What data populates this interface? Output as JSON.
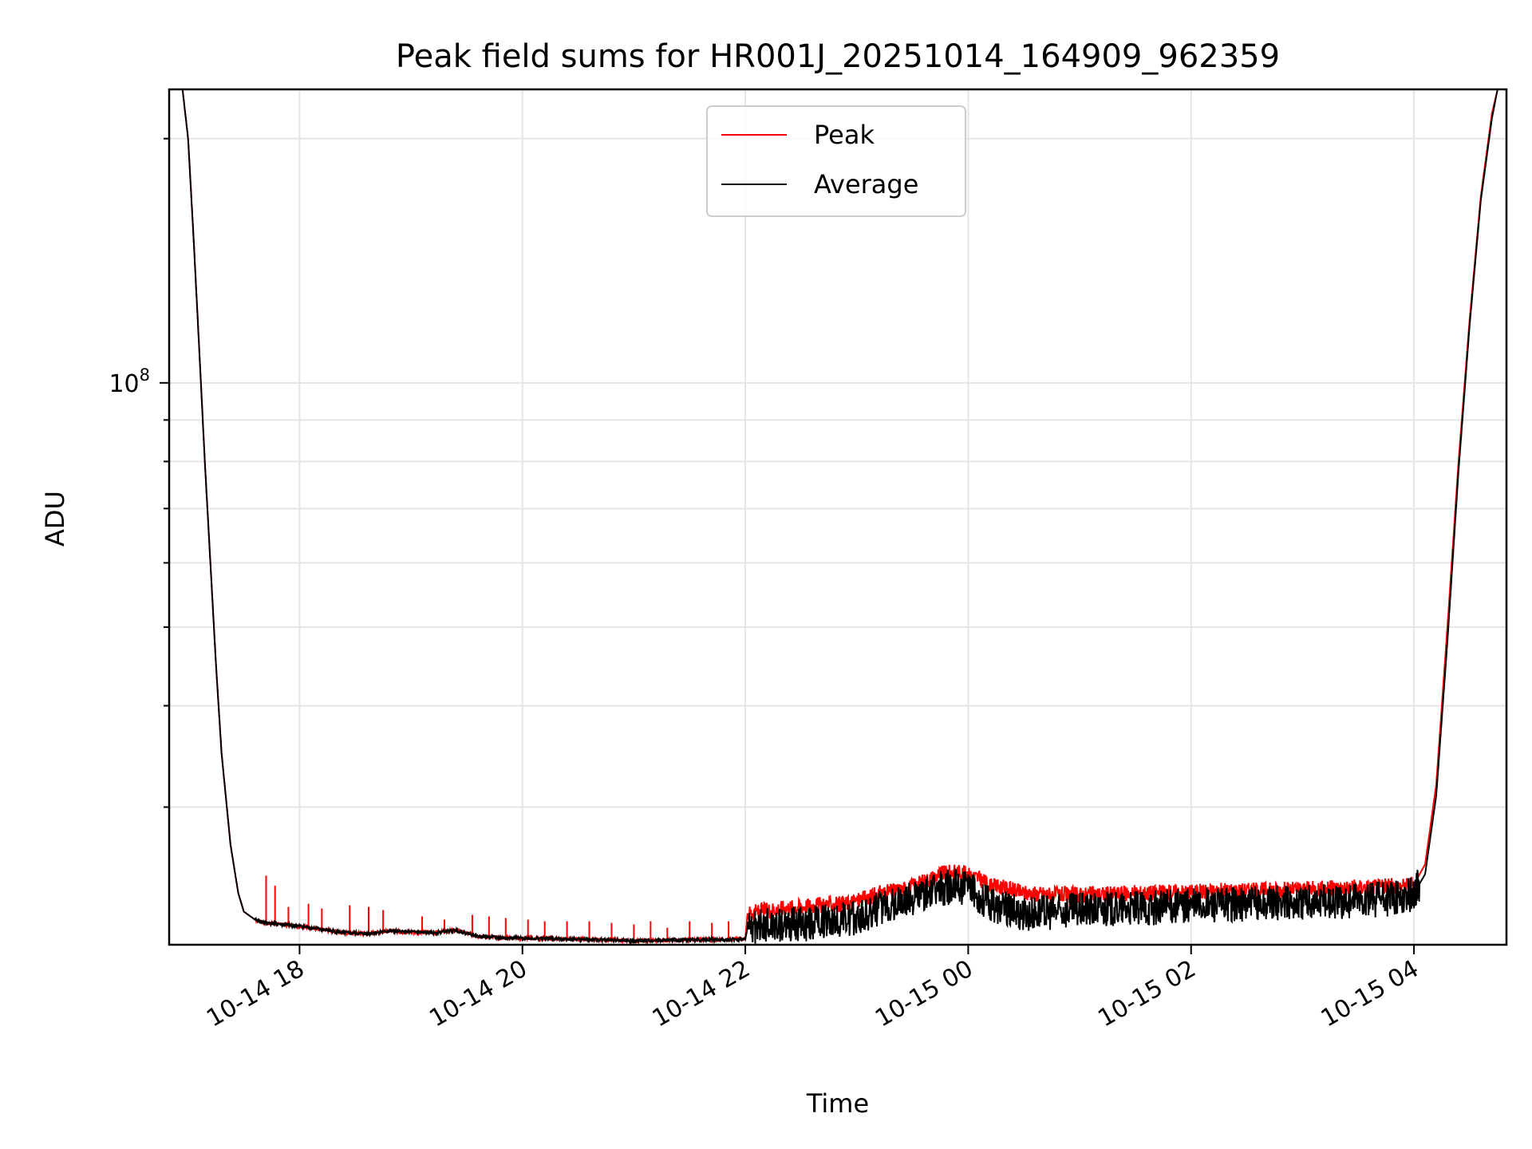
{
  "chart_data": {
    "type": "line",
    "title": "Peak field sums for HR001J_20251014_164909_962359",
    "xlabel": "Time",
    "ylabel": "ADU",
    "yscale": "log",
    "x_unit": "hours since 2025-10-14 00:00",
    "xlim": [
      16.83,
      28.83
    ],
    "ylim": [
      20300000,
      230000000
    ],
    "x_ticks": [
      {
        "value": 18,
        "label": "10-14 18"
      },
      {
        "value": 20,
        "label": "10-14 20"
      },
      {
        "value": 22,
        "label": "10-14 22"
      },
      {
        "value": 24,
        "label": "10-15 00"
      },
      {
        "value": 26,
        "label": "10-15 02"
      },
      {
        "value": 28,
        "label": "10-15 04"
      }
    ],
    "y_major_ticks": [
      {
        "value": 100000000,
        "base": "10",
        "exp": "8"
      }
    ],
    "y_minor_ticks": [
      30000000,
      40000000,
      50000000,
      60000000,
      70000000,
      80000000,
      90000000,
      200000000
    ],
    "grid": true,
    "legend": {
      "position": "top-center",
      "entries": [
        "Peak",
        "Average"
      ]
    },
    "colors": {
      "peak": "#ff0000",
      "average": "#000000"
    },
    "series": [
      {
        "name": "Peak",
        "color": "#ff0000",
        "x": [
          16.83,
          16.95,
          17.0,
          17.05,
          17.1,
          17.15,
          17.2,
          17.25,
          17.3,
          17.38,
          17.45,
          17.5,
          17.6,
          17.7,
          17.85,
          18.0,
          18.2,
          18.4,
          18.6,
          18.8,
          19.0,
          19.2,
          19.4,
          19.6,
          19.8,
          20.0,
          20.3,
          20.6,
          20.9,
          21.0,
          21.2,
          21.5,
          21.8,
          22.0,
          22.02,
          22.3,
          22.6,
          22.9,
          23.1,
          23.2,
          23.4,
          23.6,
          23.75,
          23.9,
          24.0,
          24.1,
          24.2,
          24.3,
          24.5,
          24.8,
          25.0,
          25.5,
          26.0,
          26.5,
          27.0,
          27.5,
          27.9,
          28.0,
          28.1,
          28.2,
          28.3,
          28.4,
          28.5,
          28.6,
          28.7,
          28.75,
          28.83
        ],
        "y": [
          230000000,
          230000000,
          200000000,
          150000000,
          110000000,
          80000000,
          60000000,
          45000000,
          35000000,
          27000000,
          23500000,
          22300000,
          21800000,
          21600000,
          21500000,
          21400000,
          21200000,
          21000000,
          20950000,
          21100000,
          21050000,
          21000000,
          21150000,
          20800000,
          20700000,
          20680000,
          20650000,
          20600000,
          20550000,
          20520000,
          20560000,
          20580000,
          20600000,
          20620000,
          22200000,
          22500000,
          22700000,
          22800000,
          23200000,
          23500000,
          23700000,
          24300000,
          24800000,
          25000000,
          24800000,
          24500000,
          24000000,
          23900000,
          23500000,
          23400000,
          23400000,
          23500000,
          23600000,
          23700000,
          23750000,
          23900000,
          24000000,
          24100000,
          25500000,
          32000000,
          50000000,
          80000000,
          120000000,
          170000000,
          215000000,
          230000000,
          230000000
        ],
        "spikes": [
          {
            "x": 17.7,
            "y": 24700000
          },
          {
            "x": 17.78,
            "y": 24000000
          },
          {
            "x": 17.9,
            "y": 22600000
          },
          {
            "x": 18.08,
            "y": 22800000
          },
          {
            "x": 18.2,
            "y": 22500000
          },
          {
            "x": 18.45,
            "y": 22700000
          },
          {
            "x": 18.62,
            "y": 22600000
          },
          {
            "x": 18.75,
            "y": 22400000
          },
          {
            "x": 19.1,
            "y": 22000000
          },
          {
            "x": 19.3,
            "y": 21800000
          },
          {
            "x": 19.55,
            "y": 22100000
          },
          {
            "x": 19.7,
            "y": 22000000
          },
          {
            "x": 19.85,
            "y": 21900000
          },
          {
            "x": 20.05,
            "y": 21800000
          },
          {
            "x": 20.2,
            "y": 21700000
          },
          {
            "x": 20.4,
            "y": 21700000
          },
          {
            "x": 20.6,
            "y": 21700000
          },
          {
            "x": 20.8,
            "y": 21600000
          },
          {
            "x": 21.0,
            "y": 21500000
          },
          {
            "x": 21.15,
            "y": 21700000
          },
          {
            "x": 21.3,
            "y": 21300000
          },
          {
            "x": 21.5,
            "y": 21700000
          },
          {
            "x": 21.7,
            "y": 21600000
          },
          {
            "x": 21.85,
            "y": 21700000
          }
        ]
      },
      {
        "name": "Average",
        "color": "#000000",
        "x": [
          16.83,
          16.95,
          17.0,
          17.05,
          17.1,
          17.15,
          17.2,
          17.25,
          17.3,
          17.38,
          17.45,
          17.5,
          17.6,
          17.7,
          17.85,
          18.0,
          18.2,
          18.4,
          18.6,
          18.8,
          19.0,
          19.2,
          19.4,
          19.6,
          19.8,
          20.0,
          20.3,
          20.6,
          20.9,
          21.0,
          21.2,
          21.5,
          21.8,
          22.0,
          22.02,
          22.3,
          22.6,
          22.9,
          23.1,
          23.2,
          23.4,
          23.6,
          23.75,
          23.9,
          24.0,
          24.1,
          24.2,
          24.3,
          24.5,
          24.8,
          25.0,
          25.5,
          26.0,
          26.5,
          27.0,
          27.5,
          27.9,
          28.0,
          28.1,
          28.2,
          28.3,
          28.4,
          28.5,
          28.6,
          28.7,
          28.75,
          28.83
        ],
        "y": [
          230000000,
          230000000,
          200000000,
          150000000,
          110000000,
          80000000,
          60000000,
          45000000,
          35000000,
          27000000,
          23500000,
          22300000,
          21800000,
          21600000,
          21500000,
          21400000,
          21200000,
          21000000,
          20950000,
          21100000,
          21050000,
          21000000,
          21150000,
          20800000,
          20700000,
          20680000,
          20650000,
          20600000,
          20550000,
          20520000,
          20560000,
          20580000,
          20600000,
          20620000,
          21300000,
          21400000,
          21600000,
          21800000,
          22100000,
          22500000,
          22900000,
          23500000,
          23800000,
          24000000,
          23800000,
          23300000,
          22700000,
          22500000,
          22200000,
          22300000,
          22400000,
          22500000,
          22700000,
          22800000,
          22900000,
          23000000,
          23200000,
          23500000,
          24800000,
          31000000,
          48000000,
          78000000,
          118000000,
          168000000,
          212000000,
          230000000,
          230000000
        ]
      }
    ]
  }
}
